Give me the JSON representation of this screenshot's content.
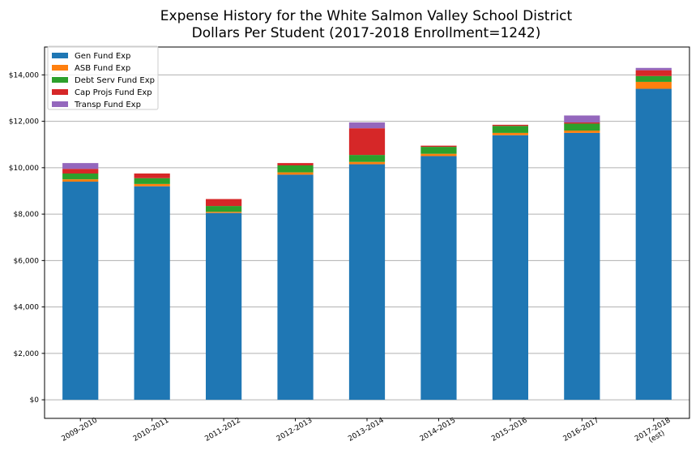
{
  "chart_data": {
    "type": "bar",
    "stacked": true,
    "title": [
      "Expense History for the White Salmon Valley School District",
      "Dollars Per Student (2017-2018 Enrollment=1242)"
    ],
    "xlabel": "",
    "ylabel": "",
    "categories": [
      [
        "2009-2010"
      ],
      [
        "2010-2011"
      ],
      [
        "2011-2012"
      ],
      [
        "2012-2013"
      ],
      [
        "2013-2014"
      ],
      [
        "2014-2015"
      ],
      [
        "2015-2016"
      ],
      [
        "2016-2017"
      ],
      [
        "2017-2018",
        "(est)"
      ]
    ],
    "ylim": [
      -800,
      15200
    ],
    "yticks": [
      0,
      2000,
      4000,
      6000,
      8000,
      10000,
      12000,
      14000
    ],
    "ytick_labels": [
      "$0",
      "$2,000",
      "$4,000",
      "$6,000",
      "$8,000",
      "$10,000",
      "$12,000",
      "$14,000"
    ],
    "grid": "horizontal",
    "legend_position": "top-left",
    "series": [
      {
        "name": "Gen Fund Exp",
        "color": "#1f77b4",
        "values": [
          9400,
          9200,
          8050,
          9700,
          10150,
          10500,
          11400,
          11500,
          13400
        ]
      },
      {
        "name": "ASB Fund Exp",
        "color": "#ff7f0e",
        "values": [
          100,
          100,
          50,
          100,
          100,
          100,
          100,
          100,
          300
        ]
      },
      {
        "name": "Debt Serv Fund Exp",
        "color": "#2ca02c",
        "values": [
          250,
          250,
          250,
          300,
          300,
          300,
          300,
          300,
          250
        ]
      },
      {
        "name": "Cap Projs Fund Exp",
        "color": "#d62728",
        "values": [
          200,
          200,
          300,
          100,
          1150,
          50,
          50,
          50,
          250
        ]
      },
      {
        "name": "Transp Fund Exp",
        "color": "#9467bd",
        "values": [
          250,
          0,
          0,
          0,
          250,
          0,
          0,
          300,
          100
        ]
      }
    ]
  }
}
